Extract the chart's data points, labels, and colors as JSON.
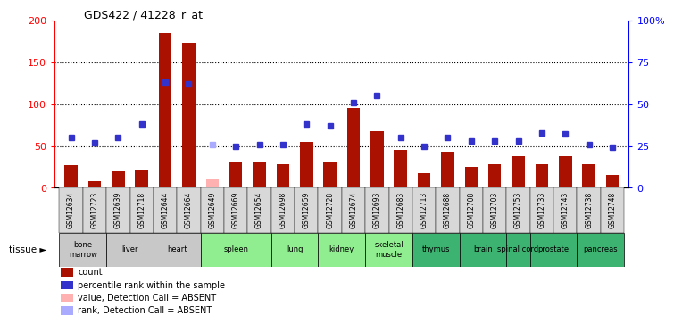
{
  "title": "GDS422 / 41228_r_at",
  "gsm_ids": [
    "GSM12634",
    "GSM12723",
    "GSM12639",
    "GSM12718",
    "GSM12644",
    "GSM12664",
    "GSM12649",
    "GSM12669",
    "GSM12654",
    "GSM12698",
    "GSM12659",
    "GSM12728",
    "GSM12674",
    "GSM12693",
    "GSM12683",
    "GSM12713",
    "GSM12688",
    "GSM12708",
    "GSM12703",
    "GSM12753",
    "GSM12733",
    "GSM12743",
    "GSM12738",
    "GSM12748"
  ],
  "red_values": [
    27,
    8,
    20,
    22,
    185,
    173,
    null,
    30,
    30,
    28,
    55,
    30,
    95,
    68,
    45,
    18,
    43,
    25,
    28,
    38,
    28,
    38,
    28,
    15
  ],
  "blue_values_pct": [
    30,
    27,
    30,
    38,
    63,
    62,
    null,
    25,
    26,
    26,
    38,
    37,
    51,
    55,
    30,
    25,
    30,
    28,
    28,
    28,
    33,
    32,
    26,
    24
  ],
  "absent_red": [
    null,
    null,
    null,
    null,
    null,
    null,
    10,
    null,
    null,
    null,
    null,
    null,
    null,
    null,
    null,
    null,
    null,
    null,
    null,
    null,
    null,
    null,
    null,
    null
  ],
  "absent_blue_pct": [
    null,
    null,
    null,
    null,
    null,
    null,
    26,
    null,
    null,
    null,
    null,
    null,
    null,
    null,
    null,
    null,
    null,
    null,
    null,
    null,
    null,
    null,
    null,
    null
  ],
  "tissues": [
    {
      "name": "bone\nmarrow",
      "indices": [
        0,
        1
      ],
      "color": "#c8c8c8"
    },
    {
      "name": "liver",
      "indices": [
        2,
        3
      ],
      "color": "#c8c8c8"
    },
    {
      "name": "heart",
      "indices": [
        4,
        5
      ],
      "color": "#c8c8c8"
    },
    {
      "name": "spleen",
      "indices": [
        6,
        7,
        8
      ],
      "color": "#90ee90"
    },
    {
      "name": "lung",
      "indices": [
        9,
        10
      ],
      "color": "#90ee90"
    },
    {
      "name": "kidney",
      "indices": [
        11,
        12
      ],
      "color": "#90ee90"
    },
    {
      "name": "skeletal\nmuscle",
      "indices": [
        13,
        14
      ],
      "color": "#90ee90"
    },
    {
      "name": "thymus",
      "indices": [
        15,
        16
      ],
      "color": "#3cb371"
    },
    {
      "name": "brain",
      "indices": [
        17,
        18
      ],
      "color": "#3cb371"
    },
    {
      "name": "spinal cord",
      "indices": [
        19
      ],
      "color": "#3cb371"
    },
    {
      "name": "prostate",
      "indices": [
        20,
        21
      ],
      "color": "#3cb371"
    },
    {
      "name": "pancreas",
      "indices": [
        22,
        23
      ],
      "color": "#3cb371"
    }
  ],
  "ylim_left": [
    0,
    200
  ],
  "ylim_right": [
    0,
    100
  ],
  "yticks_left": [
    0,
    50,
    100,
    150,
    200
  ],
  "yticks_right": [
    0,
    25,
    50,
    75,
    100
  ],
  "ytick_labels_right": [
    "0",
    "25",
    "50",
    "75",
    "100%"
  ],
  "bar_color": "#aa1100",
  "dot_color": "#3333cc",
  "absent_bar_color": "#ffb0b0",
  "absent_dot_color": "#aaaaff"
}
